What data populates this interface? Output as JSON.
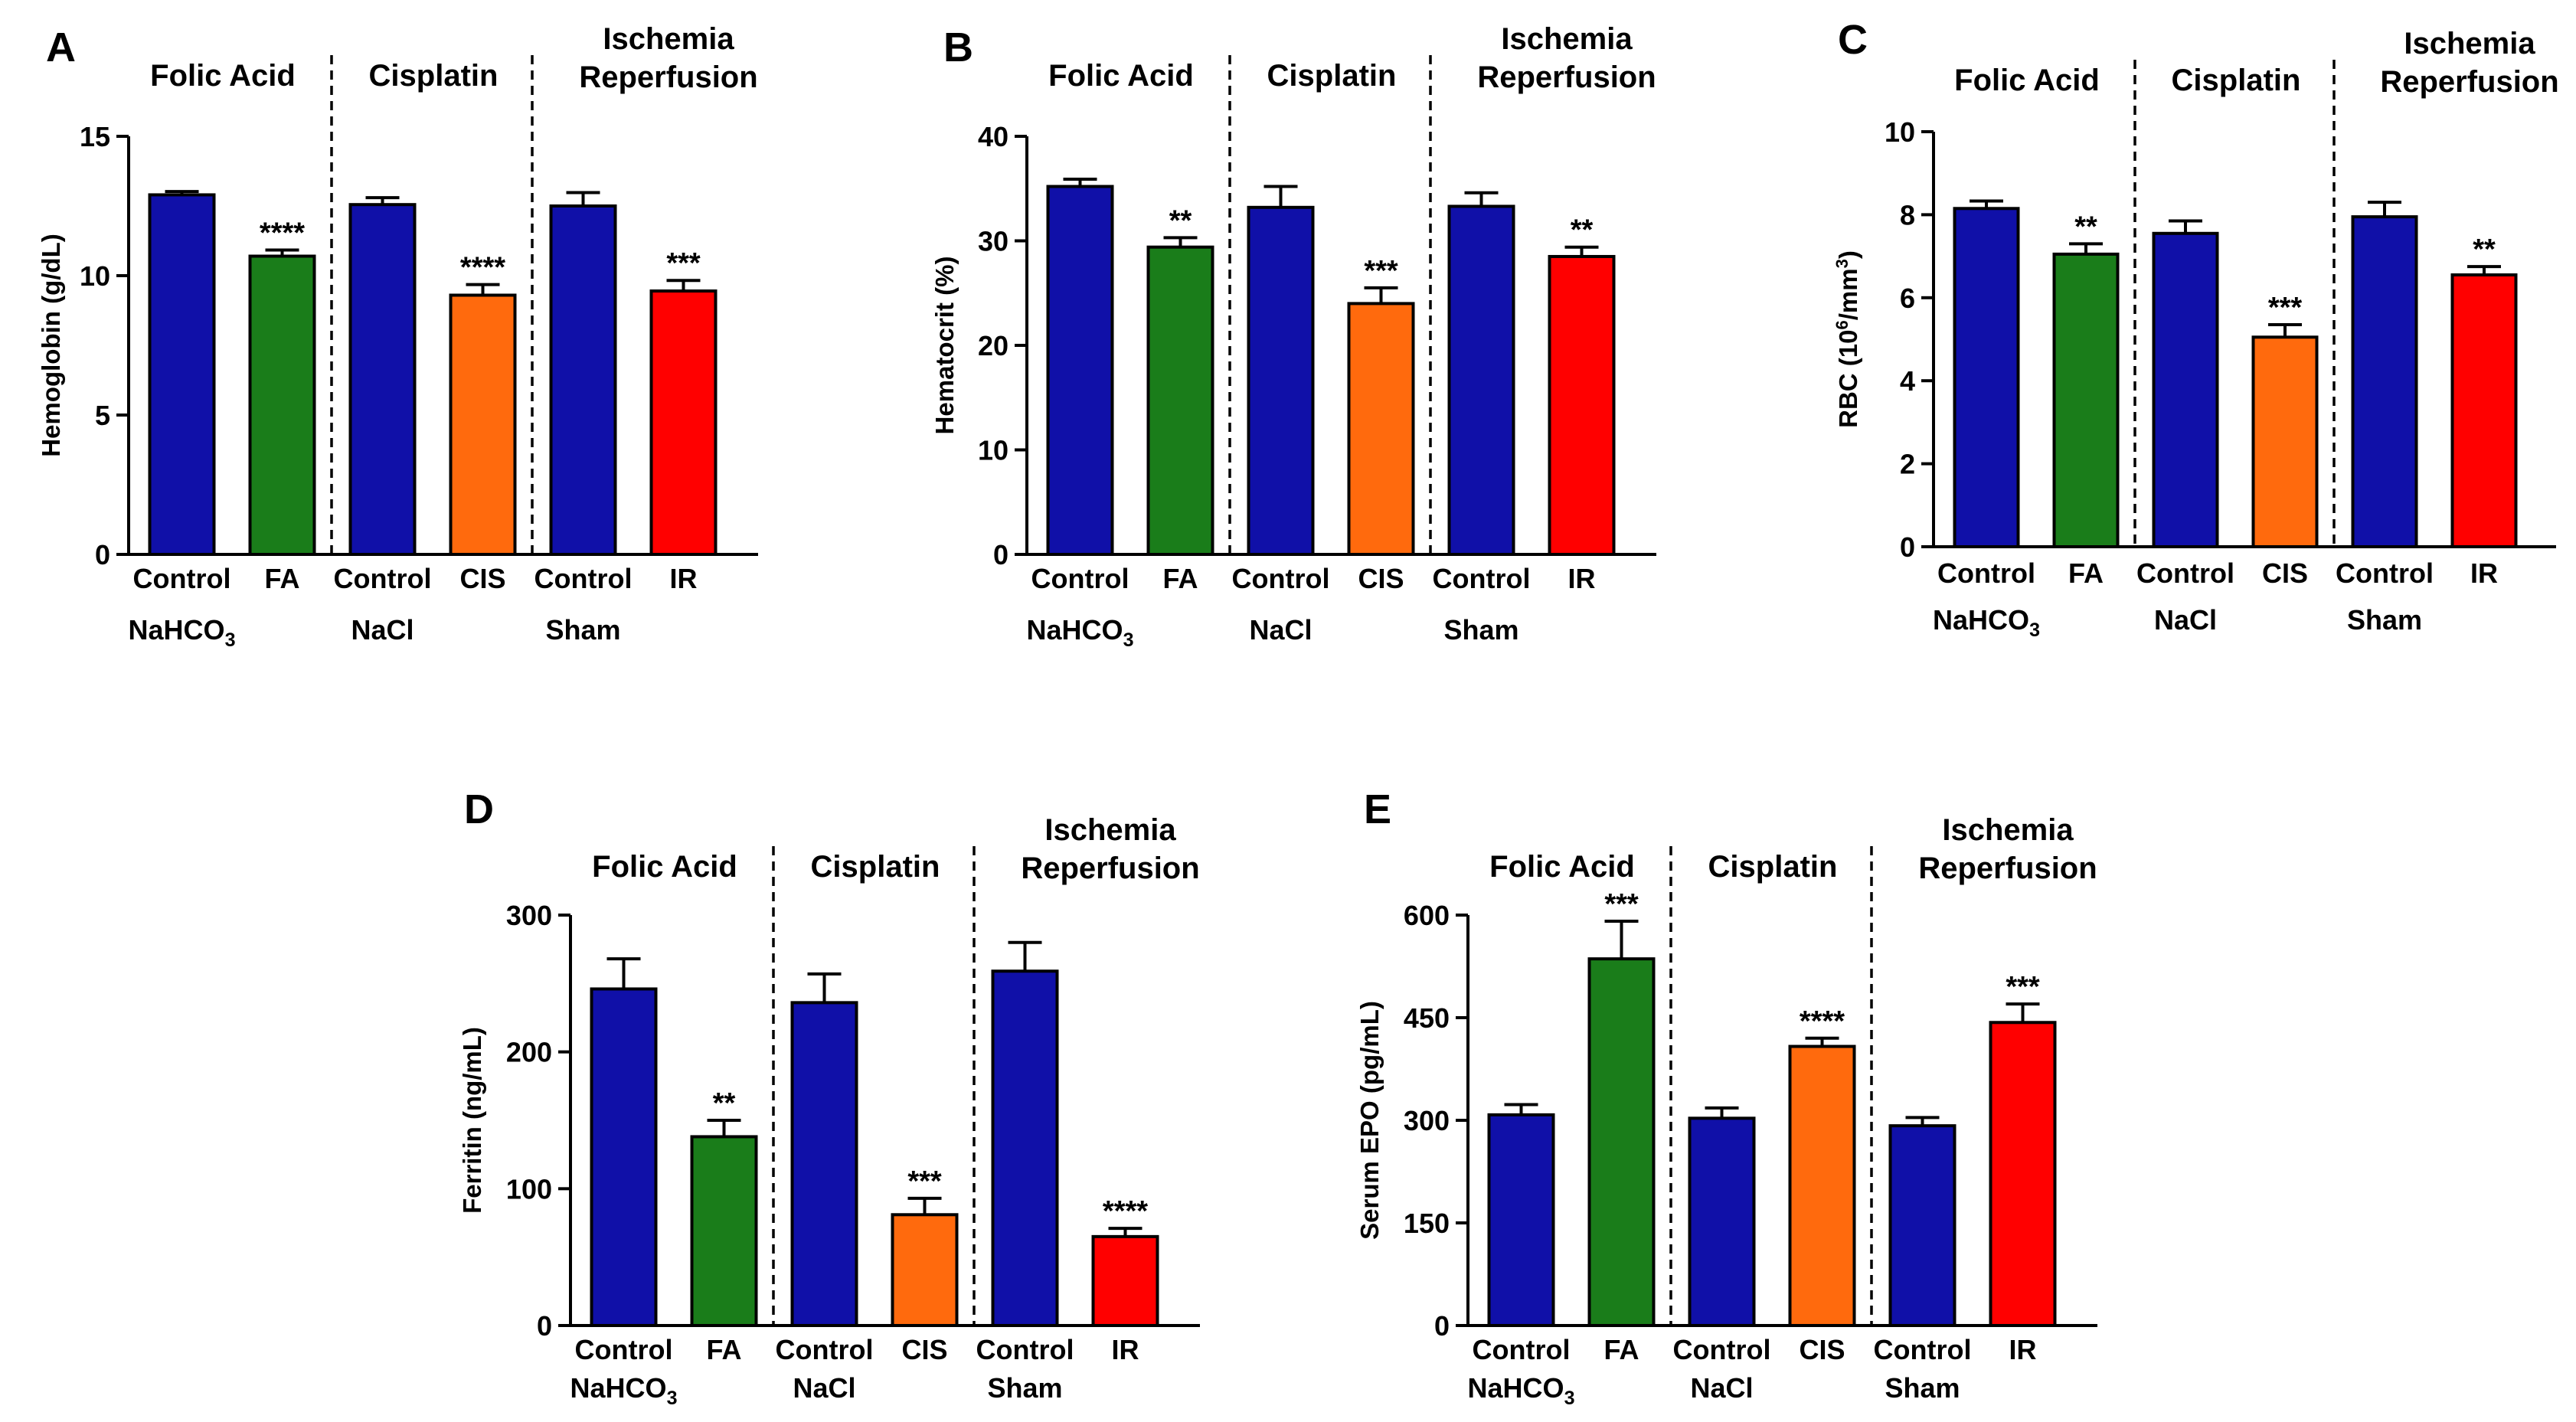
{
  "figure": {
    "background": "#ffffff"
  },
  "palette": {
    "blue": "#1010a8",
    "green": "#1a7d1a",
    "orange": "#ff6a0d",
    "red": "#ff0000"
  },
  "group_titles": {
    "folic": "Folic Acid",
    "cisplatin": "Cisplatin",
    "ischemia_line1": "Ischemia",
    "ischemia_line2": "Reperfusion"
  },
  "chart_data": [
    {
      "panel": "A",
      "type": "bar",
      "ylabel": "Hemoglobin (g/dL)",
      "ylim": [
        0,
        15
      ],
      "yticks": [
        "0",
        "5",
        "10",
        "15"
      ],
      "categories": [
        "Control",
        "FA",
        "Control",
        "CIS",
        "Control",
        "IR"
      ],
      "groups": [
        "NaHCO3",
        "NaCl",
        "Sham"
      ],
      "values": [
        12.9,
        10.7,
        12.55,
        9.3,
        12.5,
        9.45
      ],
      "errors": [
        0.12,
        0.22,
        0.25,
        0.38,
        0.48,
        0.38
      ],
      "significance": [
        "",
        "****",
        "",
        "****",
        "",
        "***"
      ],
      "colors": [
        "blue",
        "green",
        "blue",
        "orange",
        "blue",
        "red"
      ]
    },
    {
      "panel": "B",
      "type": "bar",
      "ylabel": "Hematocrit (%)",
      "ylim": [
        0,
        40
      ],
      "yticks": [
        "0",
        "10",
        "20",
        "30",
        "40"
      ],
      "categories": [
        "Control",
        "FA",
        "Control",
        "CIS",
        "Control",
        "IR"
      ],
      "groups": [
        "NaHCO3",
        "NaCl",
        "Sham"
      ],
      "values": [
        35.2,
        29.4,
        33.2,
        24.0,
        33.3,
        28.5
      ],
      "errors": [
        0.7,
        0.9,
        2.0,
        1.5,
        1.3,
        0.9
      ],
      "significance": [
        "",
        "**",
        "",
        "***",
        "",
        "**"
      ],
      "colors": [
        "blue",
        "green",
        "blue",
        "orange",
        "blue",
        "red"
      ]
    },
    {
      "panel": "C",
      "type": "bar",
      "ylabel": "RBC (10",
      "ylabel_sup": "6",
      "ylabel_end": "/mm",
      "ylabel_sup2": "3",
      "ylabel_close": ")",
      "ylim": [
        0,
        10
      ],
      "yticks": [
        "0",
        "2",
        "4",
        "6",
        "8",
        "10"
      ],
      "categories": [
        "Control",
        "FA",
        "Control",
        "CIS",
        "Control",
        "IR"
      ],
      "groups": [
        "NaHCO3",
        "NaCl",
        "Sham"
      ],
      "values": [
        8.15,
        7.05,
        7.55,
        5.05,
        7.95,
        6.55
      ],
      "errors": [
        0.18,
        0.25,
        0.3,
        0.3,
        0.35,
        0.2
      ],
      "significance": [
        "",
        "**",
        "",
        "***",
        "",
        "**"
      ],
      "colors": [
        "blue",
        "green",
        "blue",
        "orange",
        "blue",
        "red"
      ]
    },
    {
      "panel": "D",
      "type": "bar",
      "ylabel": "Ferritin (ng/mL)",
      "ylim": [
        0,
        300
      ],
      "yticks": [
        "0",
        "100",
        "200",
        "300"
      ],
      "categories": [
        "Control",
        "FA",
        "Control",
        "CIS",
        "Control",
        "IR"
      ],
      "groups": [
        "NaHCO3",
        "NaCl",
        "Sham"
      ],
      "values": [
        246,
        138,
        236,
        81,
        259,
        65
      ],
      "errors": [
        22,
        12,
        21,
        12,
        21,
        6
      ],
      "significance": [
        "",
        "**",
        "",
        "***",
        "",
        "****"
      ],
      "colors": [
        "blue",
        "green",
        "blue",
        "orange",
        "blue",
        "red"
      ]
    },
    {
      "panel": "E",
      "type": "bar",
      "ylabel": "Serum EPO (pg/mL)",
      "ylim": [
        0,
        600
      ],
      "yticks": [
        "0",
        "150",
        "300",
        "450",
        "600"
      ],
      "categories": [
        "Control",
        "FA",
        "Control",
        "CIS",
        "Control",
        "IR"
      ],
      "groups": [
        "NaHCO3",
        "NaCl",
        "Sham"
      ],
      "values": [
        308,
        536,
        303,
        408,
        292,
        443
      ],
      "errors": [
        15,
        55,
        15,
        12,
        12,
        27
      ],
      "significance": [
        "",
        "***",
        "",
        "****",
        "",
        "***"
      ],
      "colors": [
        "blue",
        "green",
        "blue",
        "orange",
        "blue",
        "red"
      ]
    }
  ]
}
